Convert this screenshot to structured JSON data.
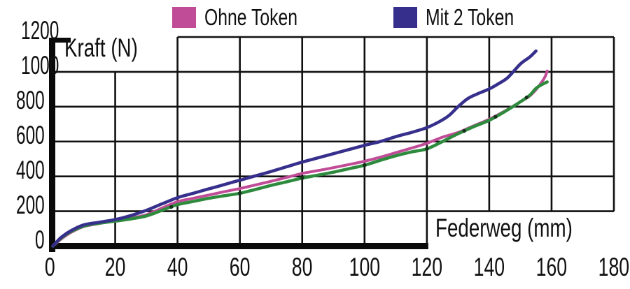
{
  "legend": {
    "items": [
      {
        "label": "Ohne Token",
        "color": "#C04C97"
      },
      {
        "label": "Mit 2 Token",
        "color": "#36308C"
      }
    ]
  },
  "axes": {
    "y_title": "Kraft (N)",
    "x_title": "Federweg (mm)"
  },
  "colors": {
    "grid": "#101010",
    "axis": "#0a0a0a",
    "background": "#ffffff",
    "marker": "#14331a"
  },
  "chart_data": {
    "type": "line",
    "title": "",
    "xlabel": "Federweg (mm)",
    "ylabel": "Kraft (N)",
    "xlim": [
      0,
      180
    ],
    "ylim": [
      0,
      1200
    ],
    "xticks": [
      0,
      20,
      40,
      60,
      80,
      100,
      120,
      140,
      160,
      180
    ],
    "yticks": [
      0,
      200,
      400,
      600,
      800,
      1000,
      1200
    ],
    "grid": true,
    "legend_position": "top",
    "series": [
      {
        "name": "Ohne Token",
        "color": "#C04C97",
        "width": 4,
        "in_legend": true,
        "points": [
          [
            0,
            0
          ],
          [
            1,
            15
          ],
          [
            3,
            45
          ],
          [
            6,
            80
          ],
          [
            10,
            112
          ],
          [
            15,
            130
          ],
          [
            20,
            146
          ],
          [
            25,
            161
          ],
          [
            30,
            180
          ],
          [
            35,
            218
          ],
          [
            40,
            255
          ],
          [
            45,
            274
          ],
          [
            50,
            293
          ],
          [
            55,
            312
          ],
          [
            60,
            330
          ],
          [
            65,
            351
          ],
          [
            70,
            372
          ],
          [
            75,
            394
          ],
          [
            80,
            417
          ],
          [
            85,
            433
          ],
          [
            90,
            450
          ],
          [
            95,
            468
          ],
          [
            100,
            487
          ],
          [
            105,
            510
          ],
          [
            110,
            536
          ],
          [
            115,
            562
          ],
          [
            120,
            590
          ],
          [
            125,
            625
          ],
          [
            130,
            652
          ],
          [
            135,
            690
          ],
          [
            140,
            728
          ],
          [
            145,
            775
          ],
          [
            150,
            828
          ],
          [
            153,
            862
          ],
          [
            155,
            898
          ],
          [
            157,
            945
          ],
          [
            158,
            975
          ],
          [
            158.6,
            1005
          ]
        ]
      },
      {
        "name": "",
        "color": "#2E8B3E",
        "width": 4.5,
        "in_legend": false,
        "marker_x": [
          38,
          60,
          80,
          100,
          120,
          132,
          142,
          152
        ],
        "points": [
          [
            0,
            0
          ],
          [
            1,
            18
          ],
          [
            3,
            50
          ],
          [
            6,
            85
          ],
          [
            10,
            115
          ],
          [
            15,
            132
          ],
          [
            20,
            143
          ],
          [
            25,
            156
          ],
          [
            30,
            173
          ],
          [
            35,
            205
          ],
          [
            40,
            238
          ],
          [
            45,
            256
          ],
          [
            50,
            274
          ],
          [
            55,
            289
          ],
          [
            60,
            303
          ],
          [
            65,
            325
          ],
          [
            70,
            348
          ],
          [
            75,
            369
          ],
          [
            80,
            390
          ],
          [
            85,
            407
          ],
          [
            90,
            424
          ],
          [
            95,
            444
          ],
          [
            100,
            464
          ],
          [
            105,
            492
          ],
          [
            110,
            518
          ],
          [
            115,
            540
          ],
          [
            120,
            558
          ],
          [
            125,
            600
          ],
          [
            130,
            645
          ],
          [
            135,
            685
          ],
          [
            140,
            722
          ],
          [
            145,
            772
          ],
          [
            150,
            828
          ],
          [
            153,
            866
          ],
          [
            155,
            905
          ],
          [
            157,
            928
          ],
          [
            158.6,
            942
          ]
        ]
      },
      {
        "name": "Mit 2 Token",
        "color": "#36308C",
        "width": 4.5,
        "in_legend": true,
        "points": [
          [
            0,
            0
          ],
          [
            1,
            20
          ],
          [
            3,
            55
          ],
          [
            6,
            90
          ],
          [
            10,
            122
          ],
          [
            15,
            137
          ],
          [
            20,
            152
          ],
          [
            25,
            175
          ],
          [
            30,
            205
          ],
          [
            35,
            242
          ],
          [
            40,
            278
          ],
          [
            45,
            303
          ],
          [
            50,
            328
          ],
          [
            55,
            353
          ],
          [
            60,
            378
          ],
          [
            65,
            403
          ],
          [
            70,
            428
          ],
          [
            75,
            455
          ],
          [
            80,
            482
          ],
          [
            85,
            506
          ],
          [
            90,
            530
          ],
          [
            95,
            554
          ],
          [
            100,
            578
          ],
          [
            105,
            600
          ],
          [
            110,
            628
          ],
          [
            115,
            652
          ],
          [
            120,
            680
          ],
          [
            124,
            714
          ],
          [
            127,
            748
          ],
          [
            130,
            800
          ],
          [
            133,
            845
          ],
          [
            136,
            872
          ],
          [
            140,
            902
          ],
          [
            143,
            932
          ],
          [
            146,
            968
          ],
          [
            150,
            1045
          ],
          [
            153,
            1085
          ],
          [
            155,
            1120
          ]
        ]
      }
    ]
  }
}
